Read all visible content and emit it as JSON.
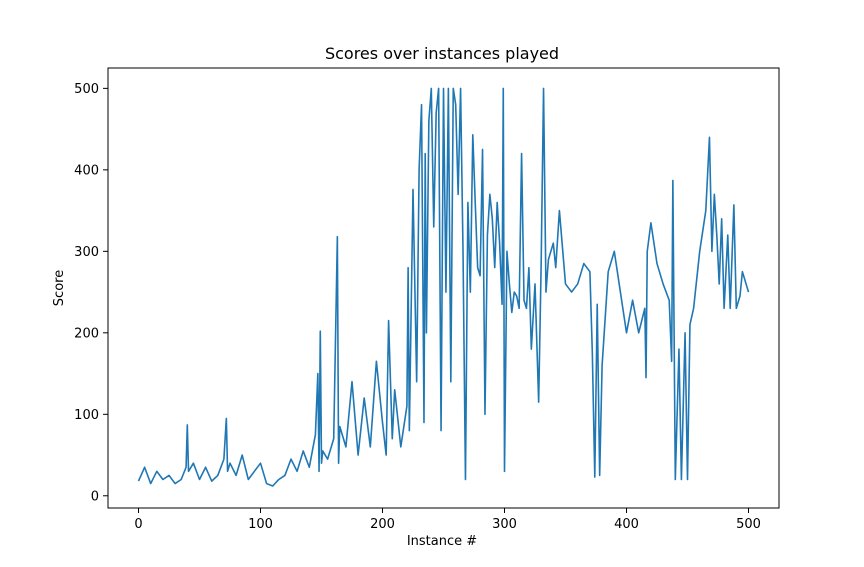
{
  "chart_data": {
    "type": "line",
    "title": "Scores over instances played",
    "xlabel": "Instance #",
    "ylabel": "Score",
    "xlim": [
      -25,
      525
    ],
    "ylim": [
      -15,
      525
    ],
    "xticks": [
      0,
      100,
      200,
      300,
      400,
      500
    ],
    "yticks": [
      0,
      100,
      200,
      300,
      400,
      500
    ],
    "grid": false,
    "series": [
      {
        "color": "#1f77b4",
        "x": [
          0,
          5,
          10,
          15,
          20,
          25,
          30,
          35,
          39,
          40,
          41,
          45,
          50,
          55,
          60,
          65,
          70,
          72,
          73,
          75,
          80,
          85,
          90,
          95,
          100,
          105,
          110,
          115,
          120,
          125,
          130,
          135,
          140,
          145,
          147,
          148,
          149,
          150,
          151,
          155,
          160,
          163,
          164,
          165,
          170,
          175,
          180,
          185,
          190,
          195,
          200,
          203,
          205,
          208,
          210,
          215,
          220,
          221,
          222,
          225,
          228,
          230,
          232,
          234,
          235,
          236,
          238,
          240,
          242,
          244,
          246,
          248,
          250,
          252,
          254,
          256,
          258,
          260,
          262,
          264,
          266,
          268,
          270,
          272,
          274,
          276,
          278,
          280,
          282,
          284,
          286,
          288,
          290,
          292,
          294,
          296,
          298,
          299,
          300,
          302,
          304,
          306,
          308,
          310,
          312,
          314,
          316,
          318,
          320,
          322,
          325,
          328,
          330,
          332,
          334,
          336,
          338,
          340,
          341,
          342,
          345,
          350,
          355,
          360,
          365,
          370,
          372,
          374,
          376,
          378,
          380,
          385,
          390,
          395,
          400,
          405,
          410,
          415,
          416,
          417,
          420,
          425,
          430,
          435,
          437,
          438,
          440,
          443,
          445,
          448,
          450,
          452,
          455,
          460,
          465,
          468,
          470,
          472,
          474,
          476,
          478,
          480,
          483,
          485,
          488,
          490,
          493,
          495,
          500
        ],
        "values": [
          18,
          35,
          15,
          30,
          20,
          25,
          15,
          20,
          35,
          87,
          30,
          40,
          20,
          35,
          18,
          25,
          45,
          95,
          30,
          40,
          25,
          50,
          20,
          30,
          40,
          15,
          12,
          20,
          25,
          45,
          30,
          55,
          35,
          75,
          150,
          30,
          202,
          40,
          55,
          45,
          70,
          318,
          40,
          85,
          60,
          140,
          50,
          120,
          60,
          165,
          90,
          50,
          215,
          70,
          130,
          60,
          110,
          280,
          80,
          376,
          140,
          400,
          480,
          90,
          420,
          200,
          460,
          500,
          330,
          470,
          500,
          80,
          500,
          250,
          500,
          140,
          500,
          480,
          370,
          500,
          300,
          20,
          360,
          250,
          443,
          360,
          280,
          270,
          425,
          100,
          320,
          370,
          340,
          280,
          360,
          310,
          235,
          500,
          30,
          300,
          260,
          225,
          250,
          245,
          230,
          420,
          240,
          230,
          280,
          180,
          260,
          115,
          280,
          500,
          250,
          290,
          300,
          310,
          295,
          280,
          350,
          260,
          250,
          260,
          285,
          275,
          175,
          23,
          235,
          25,
          160,
          275,
          300,
          250,
          200,
          240,
          200,
          230,
          145,
          300,
          335,
          285,
          260,
          240,
          165,
          387,
          20,
          180,
          20,
          200,
          20,
          210,
          230,
          300,
          350,
          440,
          300,
          370,
          320,
          260,
          340,
          230,
          320,
          230,
          357,
          230,
          245,
          275,
          250
        ]
      }
    ]
  }
}
